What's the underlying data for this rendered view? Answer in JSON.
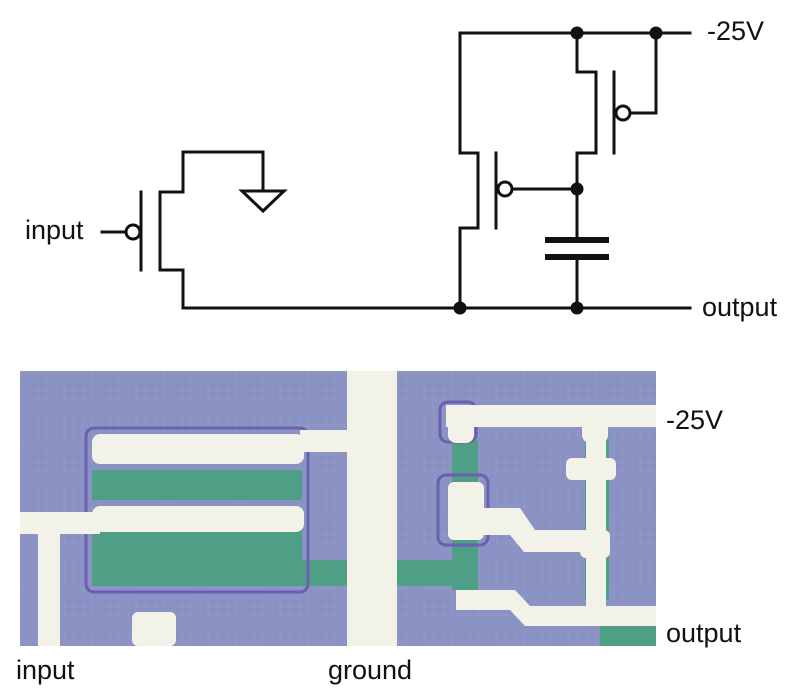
{
  "schematic": {
    "input_label": "input",
    "supply_label": "-25V",
    "output_label": "output"
  },
  "die_photo": {
    "supply_label": "-25V",
    "output_label": "output",
    "input_label": "input",
    "ground_label": "ground"
  },
  "colors": {
    "wire": "#111111",
    "die_background": "#8b93c4",
    "metal": "#f2f2e8",
    "diffusion": "#4f9e86",
    "poly_edge": "#6a5fb0"
  }
}
